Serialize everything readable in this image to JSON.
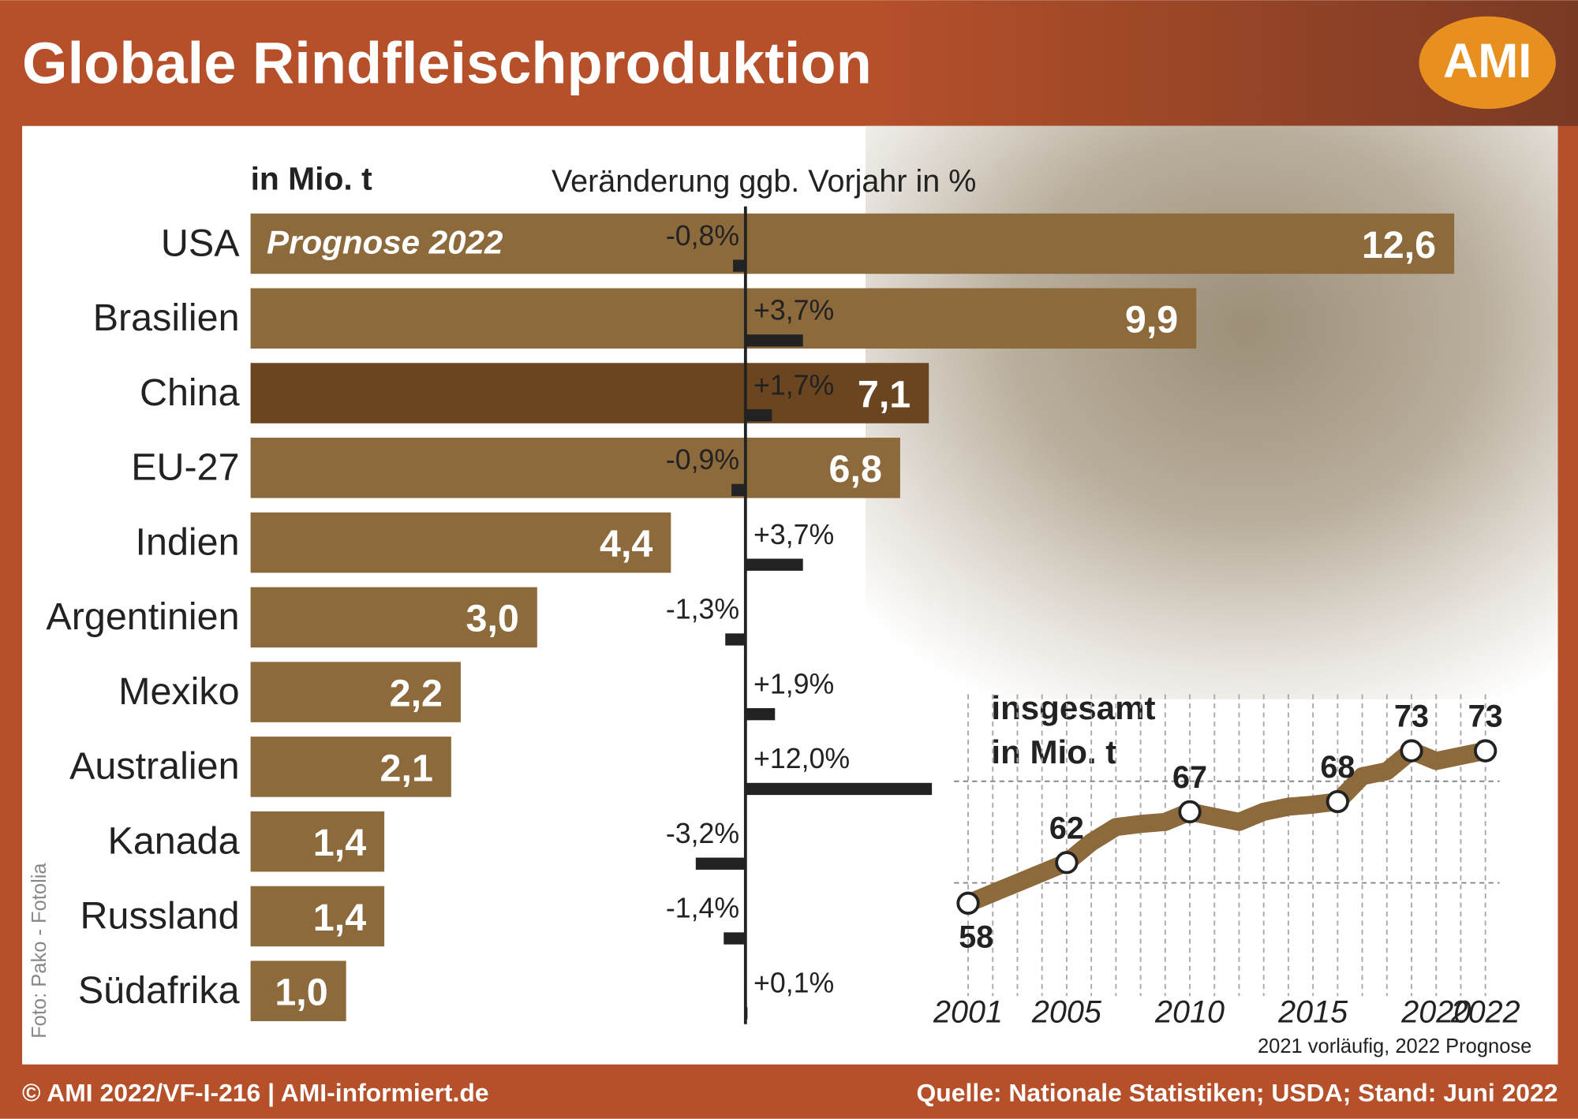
{
  "header": {
    "title": "Globale Rindfleischproduktion",
    "logo": "AMI"
  },
  "chart_data": [
    {
      "type": "bar",
      "orientation": "horizontal",
      "note": "Prognose 2022",
      "categories": [
        "USA",
        "Brasilien",
        "China",
        "EU-27",
        "Indien",
        "Argentinien",
        "Mexiko",
        "Australien",
        "Kanada",
        "Russland",
        "Südafrika"
      ],
      "series": [
        {
          "name": "in Mio. t",
          "color": "#8d6a3b",
          "colors": [
            "#8d6a3b",
            "#8d6a3b",
            "#6a4520",
            "#8d6a3b",
            "#8d6a3b",
            "#8d6a3b",
            "#8d6a3b",
            "#8d6a3b",
            "#8d6a3b",
            "#8d6a3b",
            "#8d6a3b"
          ],
          "values": [
            12.6,
            9.9,
            7.1,
            6.8,
            4.4,
            3.0,
            2.2,
            2.1,
            1.4,
            1.4,
            1.0
          ],
          "value_labels": [
            "12,6",
            "9,9",
            "7,1",
            "6,8",
            "4,4",
            "3,0",
            "2,2",
            "2,1",
            "1,4",
            "1,4",
            "1,0"
          ]
        },
        {
          "name": "Veränderung ggb. Vorjahr in %",
          "color": "#222222",
          "axis": "x2",
          "values": [
            -0.8,
            3.7,
            1.7,
            -0.9,
            3.7,
            -1.3,
            1.9,
            12.0,
            -3.2,
            -1.4,
            0.1
          ],
          "value_labels": [
            "-0,8%",
            "+3,7%",
            "+1,7%",
            "-0,9%",
            "+3,7%",
            "-1,3%",
            "+1,9%",
            "+12,0%",
            "-3,2%",
            "-1,4%",
            "+0,1%"
          ]
        }
      ],
      "xlim": [
        0,
        12.6
      ],
      "x2lim": [
        -4,
        12
      ]
    },
    {
      "type": "line",
      "title": [
        "insgesamt",
        "in Mio. t"
      ],
      "x": [
        2001,
        2002,
        2003,
        2004,
        2005,
        2006,
        2007,
        2008,
        2009,
        2010,
        2011,
        2012,
        2013,
        2014,
        2015,
        2016,
        2017,
        2018,
        2019,
        2020,
        2021,
        2022
      ],
      "values": [
        58,
        59,
        60,
        61,
        62,
        64,
        65.5,
        65.8,
        66,
        67,
        66.5,
        66,
        67,
        67.5,
        67.7,
        68,
        70.5,
        71,
        73,
        72,
        72.5,
        73
      ],
      "color": "#8d6a3b",
      "annotations": [
        {
          "x": 2001,
          "y": 58,
          "label": "58"
        },
        {
          "x": 2005,
          "y": 62,
          "label": "62"
        },
        {
          "x": 2010,
          "y": 67,
          "label": "67"
        },
        {
          "x": 2016,
          "y": 68,
          "label": "68"
        },
        {
          "x": 2019,
          "y": 73,
          "label": "73"
        },
        {
          "x": 2022,
          "y": 73,
          "label": "73"
        }
      ],
      "xlim": [
        2001,
        2022
      ],
      "xticks": [
        2001,
        2005,
        2010,
        2015,
        2020,
        2022
      ],
      "ylim": [
        55,
        75
      ],
      "yticks": [
        60,
        70
      ],
      "grid": true,
      "footnote": "2021 vorläufig, 2022 Prognose"
    }
  ],
  "footer": {
    "left": "© AMI 2022/VF-I-216 | AMI-informiert.de",
    "right": "Quelle: Nationale Statistiken; USDA; Stand: Juni 2022",
    "photo_credit": "Foto: Pako - Fotolia"
  }
}
